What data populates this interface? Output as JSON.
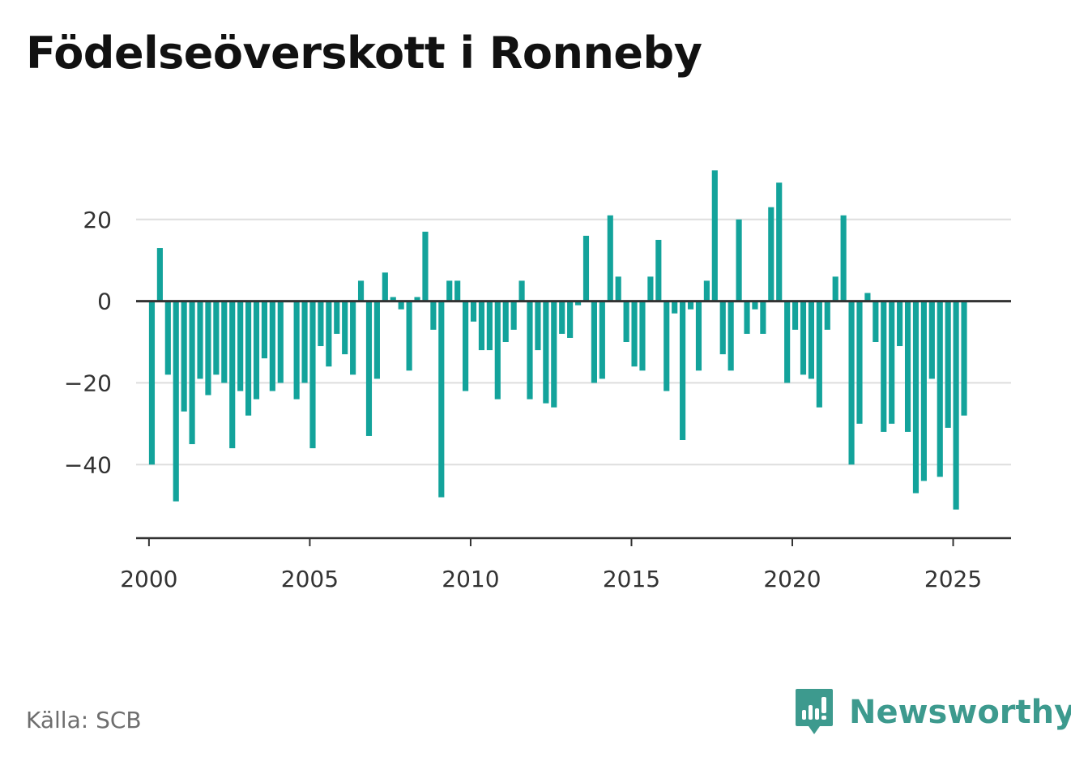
{
  "title": "Födelseöverskott i Ronneby",
  "source": "Källa: SCB",
  "brand": {
    "name": "Newsworthy",
    "icon": "newsworthy-logo-icon"
  },
  "colors": {
    "bar": "#13a39b",
    "grid": "#dedede",
    "axis": "#333333",
    "text": "#333333",
    "brand": "#3d9a8e"
  },
  "chart_data": {
    "type": "bar",
    "title": "Födelseöverskott i Ronneby",
    "xlabel": "",
    "ylabel": "",
    "ylim": [
      -58,
      38
    ],
    "xlim": [
      1999.6,
      2026.8
    ],
    "grid": true,
    "xticks": [
      {
        "value": 2000,
        "label": "2000"
      },
      {
        "value": 2005,
        "label": "2005"
      },
      {
        "value": 2010,
        "label": "2010"
      },
      {
        "value": 2015,
        "label": "2015"
      },
      {
        "value": 2020,
        "label": "2020"
      },
      {
        "value": 2025,
        "label": "2025"
      }
    ],
    "yticks": [
      {
        "value": 20,
        "label": "20"
      },
      {
        "value": 0,
        "label": "0"
      },
      {
        "value": -20,
        "label": "−20"
      },
      {
        "value": -40,
        "label": "−40"
      }
    ],
    "x_start": "2000 Q1",
    "x_step": "quarter",
    "values": [
      -40,
      13,
      -18,
      -49,
      -27,
      -35,
      -19,
      -23,
      -18,
      -20,
      -36,
      -22,
      -28,
      -24,
      -14,
      -22,
      -20,
      0,
      -24,
      -20,
      -36,
      -11,
      -16,
      -8,
      -13,
      -18,
      5,
      -33,
      -19,
      7,
      1,
      -2,
      -17,
      1,
      17,
      -7,
      -48,
      5,
      5,
      -22,
      -5,
      -12,
      -12,
      -24,
      -10,
      -7,
      5,
      -24,
      -12,
      -25,
      -26,
      -8,
      -9,
      -1,
      16,
      -20,
      -19,
      21,
      6,
      -10,
      -16,
      -17,
      6,
      15,
      -22,
      -3,
      -34,
      -2,
      -17,
      5,
      32,
      -13,
      -17,
      20,
      -8,
      -2,
      -8,
      23,
      29,
      -20,
      -7,
      -18,
      -19,
      -26,
      -7,
      6,
      21,
      -40,
      -30,
      2,
      -10,
      -32,
      -30,
      -11,
      -32,
      -47,
      -44,
      -19,
      -43,
      -31,
      -51,
      -28
    ]
  }
}
